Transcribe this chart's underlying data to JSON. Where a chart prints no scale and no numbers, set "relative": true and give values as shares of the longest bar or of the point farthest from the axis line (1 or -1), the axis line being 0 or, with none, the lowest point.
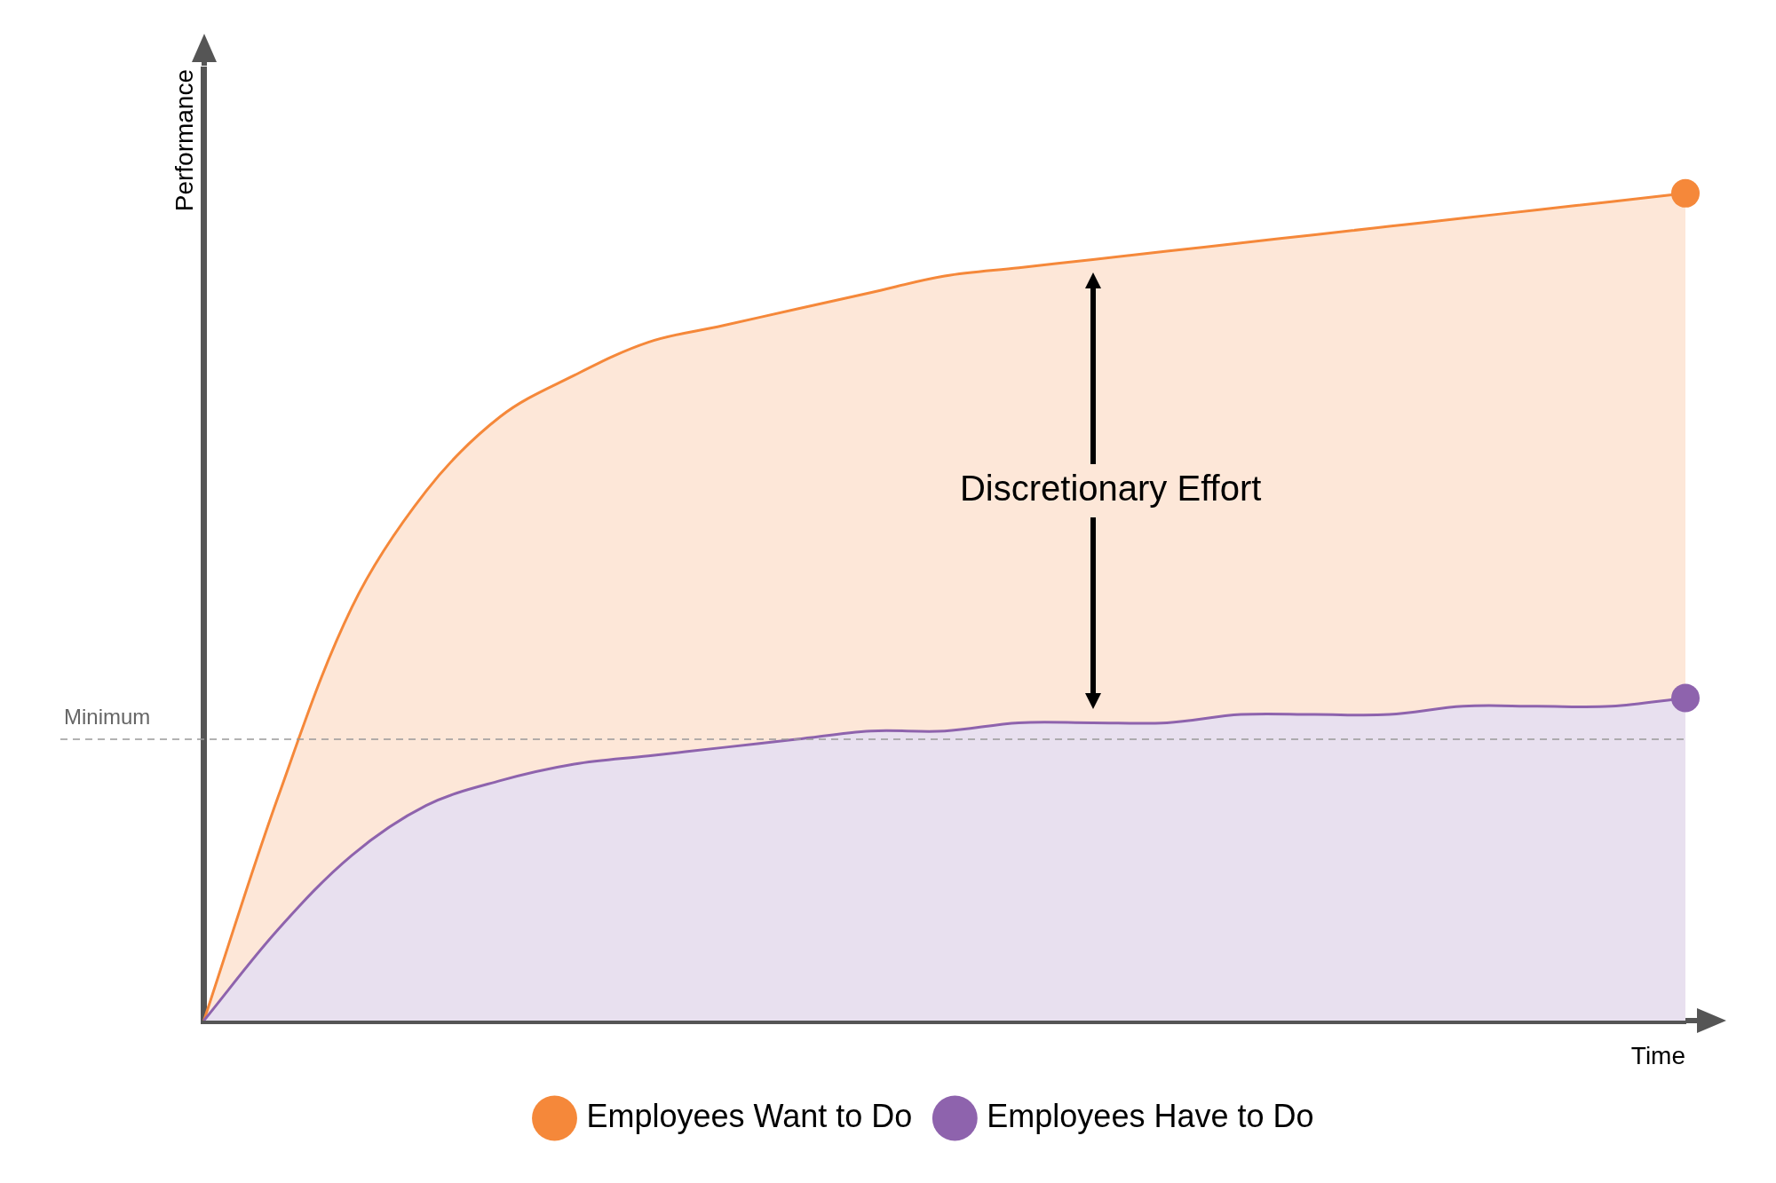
{
  "chart_data": {
    "type": "area",
    "relative": true,
    "xlabel": "Time",
    "ylabel": "Performance",
    "categories": [
      null,
      null,
      null,
      null,
      null,
      null,
      null,
      null,
      null,
      null,
      null,
      null,
      null,
      null,
      null,
      null,
      null,
      null,
      null,
      null,
      null
    ],
    "series": [
      {
        "name": "Employees Want to Do",
        "color": "#f5883a",
        "values": [
          0,
          0.27,
          0.5,
          0.64,
          0.73,
          0.78,
          0.82,
          0.84,
          0.86,
          0.88,
          0.9,
          0.91,
          0.92,
          0.93,
          0.94,
          0.95,
          0.96,
          0.97,
          0.98,
          0.99,
          1
        ]
      },
      {
        "name": "Employees Have to Do",
        "color": "#8e63ad",
        "values": [
          0,
          0.11,
          0.2,
          0.26,
          0.29,
          0.31,
          0.32,
          0.33,
          0.34,
          0.35,
          0.35,
          0.36,
          0.36,
          0.36,
          0.37,
          0.37,
          0.37,
          0.38,
          0.38,
          0.38,
          0.39
        ]
      }
    ],
    "ref_lines": [
      {
        "axis": "y",
        "value": 0.34,
        "label": "Minimum",
        "color": "#999999",
        "line_style": "dashed"
      }
    ],
    "annotations": [
      "Discretionary Effort"
    ],
    "legend": "bottom",
    "grid": false
  }
}
